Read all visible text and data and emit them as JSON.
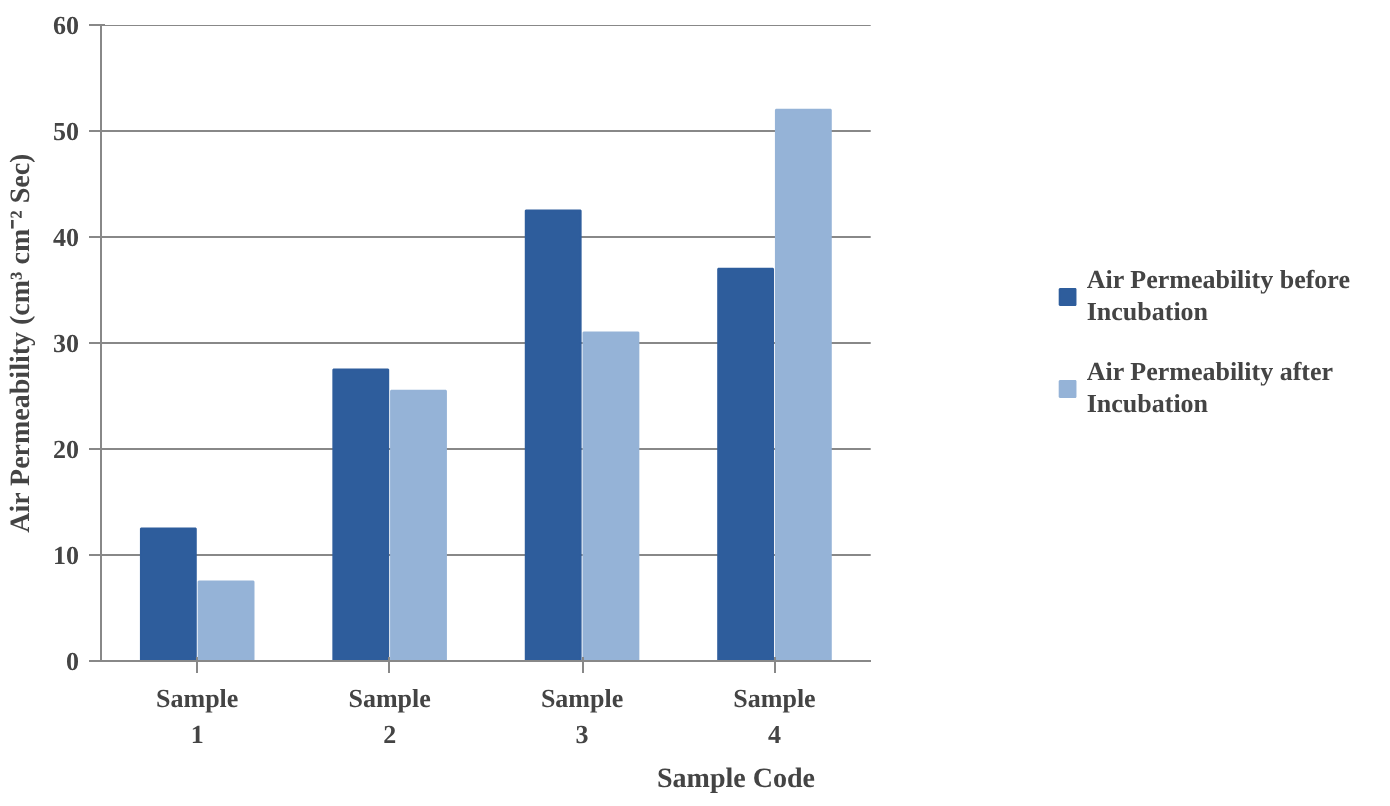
{
  "chart_data": {
    "type": "bar",
    "xlabel": "Sample Code",
    "ylabel": "Air Permeability (cm³ cm⁻² Sec)",
    "categories": [
      "Sample 1",
      "Sample 2",
      "Sample 3",
      "Sample 4"
    ],
    "series": [
      {
        "name": "Air Permeability before Incubation",
        "color": "#2e5d9c",
        "values": [
          12.5,
          27.5,
          42.5,
          37
        ]
      },
      {
        "name": "Air Permeability after Incubation",
        "color": "#95b3d7",
        "values": [
          7.5,
          25.5,
          31,
          52
        ]
      }
    ],
    "ylim": [
      0,
      60
    ],
    "yticks": [
      0,
      10,
      20,
      30,
      40,
      50,
      60
    ],
    "grid": "y",
    "legend": "right"
  }
}
